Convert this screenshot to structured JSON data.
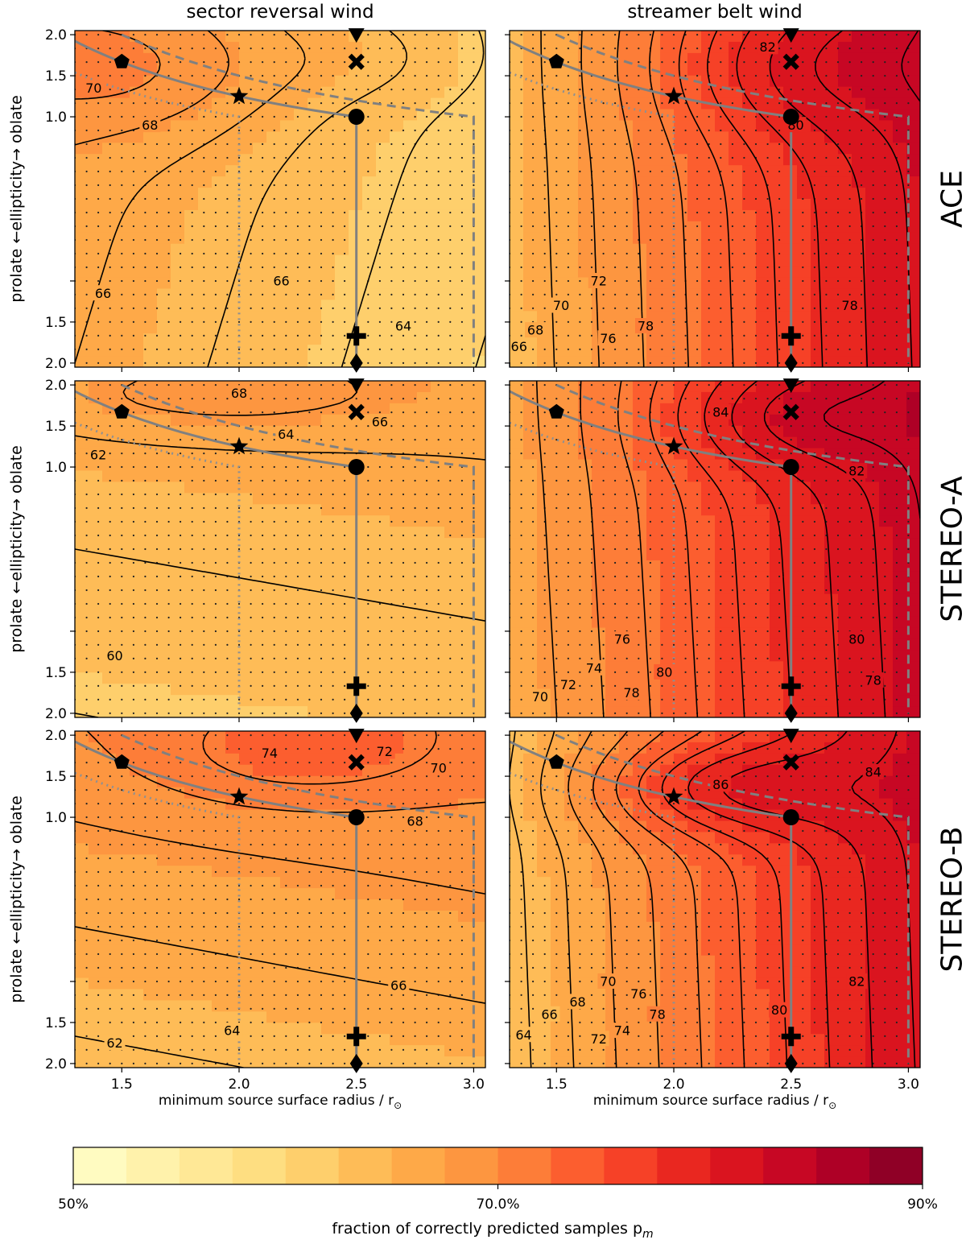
{
  "chart_data": {
    "type": "heatmap",
    "columns": [
      "sector reversal wind",
      "streamer belt wind"
    ],
    "rows": [
      "ACE",
      "STEREO-A",
      "STEREO-B"
    ],
    "xlabel": "minimum source surface radius / r",
    "xlabel_sub": "⊙",
    "ylabel": {
      "left": "prolate",
      "arrow": "←ellipticity→",
      "right": "oblate"
    },
    "x_ticks": [
      1.5,
      2.0,
      2.5,
      3.0
    ],
    "x_tick_labels": [
      "1.5",
      "2.0",
      "2.5",
      "3.0"
    ],
    "xlim": [
      1.3,
      3.05
    ],
    "y_ticks": [
      -2.0,
      -1.5,
      -1.0,
      1.0,
      1.5,
      2.0
    ],
    "y_tick_labels": [
      "2.0",
      "1.5",
      "1.0",
      "1.5",
      "2.0"
    ],
    "y_tick_values": [
      2.0,
      1.5,
      1.0,
      -1.5,
      -2.0
    ],
    "colorbar": {
      "label": "fraction of correctly predicted samples p",
      "label_sub": "m",
      "min": 50,
      "max": 90,
      "step": 2.5,
      "tick_values": [
        50,
        70,
        90
      ],
      "tick_labels": [
        "50%",
        "70.0%",
        "90%"
      ],
      "stops": [
        "#ffffcc",
        "#ffeda0",
        "#fed976",
        "#feb24c",
        "#fd8d3c",
        "#fc4e2a",
        "#e31a1c",
        "#bd0026",
        "#800026"
      ]
    },
    "markers": [
      {
        "name": "pentagon",
        "x": 1.5,
        "y": 1.67
      },
      {
        "name": "star",
        "x": 2.0,
        "y": 1.25
      },
      {
        "name": "circle",
        "x": 2.5,
        "y": 1.0
      },
      {
        "name": "triangle-down",
        "x": 2.5,
        "y": 2.0
      },
      {
        "name": "x-marker",
        "x": 2.5,
        "y": 1.67
      },
      {
        "name": "plus",
        "x": 2.5,
        "y": -1.67
      },
      {
        "name": "diamond",
        "x": 2.5,
        "y": -2.0
      }
    ],
    "panels": [
      {
        "row": "ACE",
        "column": "sector reversal wind",
        "field": {
          "base": 66.0,
          "gx": -3.5,
          "gy": 1.5,
          "peak": {
            "x": 1.55,
            "y": 1.6,
            "amp": 4.0,
            "sx": 0.45,
            "sy": 0.6
          },
          "peak2": {
            "x": 2.6,
            "y": 1.7,
            "amp": 1.5,
            "sx": 0.35,
            "sy": 0.4
          }
        },
        "contour_labels": [
          {
            "text": "70",
            "x": 1.38,
            "y": 1.35
          },
          {
            "text": "68",
            "x": 1.62,
            "y": 0.9
          },
          {
            "text": "66",
            "x": 1.42,
            "y": -1.15
          },
          {
            "text": "66",
            "x": 2.18,
            "y": -1.0
          },
          {
            "text": "64",
            "x": 2.7,
            "y": -1.55
          }
        ]
      },
      {
        "row": "ACE",
        "column": "streamer belt wind",
        "field": {
          "base": 64.0,
          "gx": 10.5,
          "gy": 0.5,
          "peak": {
            "x": 2.5,
            "y": 1.6,
            "amp": 4.0,
            "sx": 0.4,
            "sy": 0.6
          },
          "peak2": null
        },
        "contour_labels": [
          {
            "text": "82",
            "x": 2.4,
            "y": 1.85
          },
          {
            "text": "80",
            "x": 2.52,
            "y": 0.9
          },
          {
            "text": "78",
            "x": 2.75,
            "y": -1.3
          },
          {
            "text": "78",
            "x": 1.88,
            "y": -1.55
          },
          {
            "text": "76",
            "x": 1.72,
            "y": -1.7
          },
          {
            "text": "72",
            "x": 1.68,
            "y": -1.0
          },
          {
            "text": "70",
            "x": 1.52,
            "y": -1.3
          },
          {
            "text": "68",
            "x": 1.41,
            "y": -1.6
          },
          {
            "text": "66",
            "x": 1.34,
            "y": -1.8
          }
        ]
      },
      {
        "row": "STEREO-A",
        "column": "sector reversal wind",
        "field": {
          "base": 62.0,
          "gx": 0.5,
          "gy": 4.0,
          "peak": {
            "x": 1.9,
            "y": 1.85,
            "amp": 2.5,
            "sx": 0.6,
            "sy": 0.35
          },
          "peak2": null
        },
        "contour_labels": [
          {
            "text": "68",
            "x": 2.0,
            "y": 1.9
          },
          {
            "text": "66",
            "x": 2.6,
            "y": 1.55
          },
          {
            "text": "64",
            "x": 2.2,
            "y": 1.4
          },
          {
            "text": "62",
            "x": 1.4,
            "y": 1.15
          },
          {
            "text": "60",
            "x": 1.47,
            "y": -1.3
          }
        ]
      },
      {
        "row": "STEREO-A",
        "column": "streamer belt wind",
        "field": {
          "base": 66.0,
          "gx": 10.0,
          "gy": 0.8,
          "peak": {
            "x": 2.45,
            "y": 1.6,
            "amp": 4.5,
            "sx": 0.35,
            "sy": 0.45
          },
          "peak2": null
        },
        "contour_labels": [
          {
            "text": "84",
            "x": 2.2,
            "y": 1.67
          },
          {
            "text": "82",
            "x": 2.78,
            "y": 0.95
          },
          {
            "text": "80",
            "x": 2.78,
            "y": -1.1
          },
          {
            "text": "80",
            "x": 1.96,
            "y": -1.5
          },
          {
            "text": "78",
            "x": 2.85,
            "y": -1.6
          },
          {
            "text": "78",
            "x": 1.82,
            "y": -1.75
          },
          {
            "text": "76",
            "x": 1.78,
            "y": -1.1
          },
          {
            "text": "74",
            "x": 1.66,
            "y": -1.45
          },
          {
            "text": "72",
            "x": 1.55,
            "y": -1.65
          },
          {
            "text": "70",
            "x": 1.43,
            "y": -1.8
          }
        ]
      },
      {
        "row": "STEREO-B",
        "column": "sector reversal wind",
        "field": {
          "base": 63.5,
          "gx": 0.8,
          "gy": 6.0,
          "peak": {
            "x": 2.25,
            "y": 1.75,
            "amp": 3.5,
            "sx": 0.45,
            "sy": 0.45
          },
          "peak2": null
        },
        "contour_labels": [
          {
            "text": "74",
            "x": 2.13,
            "y": 1.78
          },
          {
            "text": "72",
            "x": 2.62,
            "y": 1.8
          },
          {
            "text": "70",
            "x": 2.85,
            "y": 1.6
          },
          {
            "text": "68",
            "x": 2.75,
            "y": 0.95
          },
          {
            "text": "66",
            "x": 2.68,
            "y": -1.05
          },
          {
            "text": "64",
            "x": 1.97,
            "y": -1.6
          },
          {
            "text": "62",
            "x": 1.47,
            "y": -1.75
          }
        ]
      },
      {
        "row": "STEREO-B",
        "column": "streamer belt wind",
        "field": {
          "base": 63.0,
          "gx": 11.0,
          "gy": 0.6,
          "peak": {
            "x": 2.2,
            "y": 1.35,
            "amp": 6.5,
            "sx": 0.4,
            "sy": 0.4
          },
          "peak2": null
        },
        "contour_labels": [
          {
            "text": "86",
            "x": 2.2,
            "y": 1.4
          },
          {
            "text": "84",
            "x": 2.85,
            "y": 1.55
          },
          {
            "text": "82",
            "x": 2.78,
            "y": -1.0
          },
          {
            "text": "80",
            "x": 2.45,
            "y": -1.35
          },
          {
            "text": "78",
            "x": 1.93,
            "y": -1.4
          },
          {
            "text": "76",
            "x": 1.85,
            "y": -1.15
          },
          {
            "text": "74",
            "x": 1.78,
            "y": -1.6
          },
          {
            "text": "72",
            "x": 1.68,
            "y": -1.7
          },
          {
            "text": "70",
            "x": 1.72,
            "y": -1.0
          },
          {
            "text": "68",
            "x": 1.59,
            "y": -1.25
          },
          {
            "text": "66",
            "x": 1.47,
            "y": -1.4
          },
          {
            "text": "64",
            "x": 1.36,
            "y": -1.65
          }
        ]
      }
    ],
    "guide_curves": {
      "solid": "r_min * ellipticity constant curve through (1.5,1.67),(2.0,1.25),(2.5,1.0) then vertical to -2",
      "dashed": "upper envelope to (3.0,1.0) then vertical",
      "dotted": "lower envelope to (2.0,1.0) then vertical"
    }
  }
}
